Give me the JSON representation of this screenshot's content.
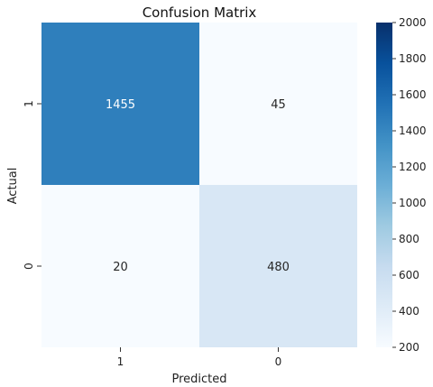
{
  "chart_data": {
    "type": "heatmap",
    "title": "Confusion Matrix",
    "xlabel": "Predicted",
    "ylabel": "Actual",
    "x_categories": [
      "1",
      "0"
    ],
    "y_categories": [
      "1",
      "0"
    ],
    "values": [
      [
        1455,
        45
      ],
      [
        20,
        480
      ]
    ],
    "colorbar": {
      "min": 200,
      "max": 2000,
      "ticks": [
        200,
        400,
        600,
        800,
        1000,
        1200,
        1400,
        1600,
        1800,
        2000
      ],
      "colormap": "Blues"
    }
  }
}
